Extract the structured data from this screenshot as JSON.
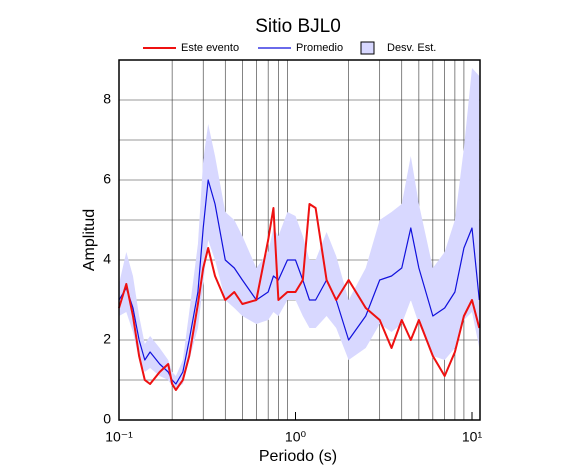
{
  "chart_data": {
    "type": "line",
    "title": "Sitio BJL0",
    "x_label": "Periodo (s)",
    "y_label": "Amplitud",
    "log_x": true,
    "xlim": [
      0.1,
      11.1
    ],
    "ylim": [
      0,
      9
    ],
    "xticks": [
      {
        "value": 0.1,
        "label": "10⁻¹"
      },
      {
        "value": 1,
        "label": "10⁰"
      },
      {
        "value": 10,
        "label": "10¹"
      }
    ],
    "x_minor_ticks": [
      0.2,
      0.3,
      0.4,
      0.5,
      0.6,
      0.7,
      0.8,
      0.9,
      2,
      3,
      4,
      5,
      6,
      7,
      8,
      9
    ],
    "yticks": [
      0,
      2,
      4,
      6,
      8
    ],
    "y_minor_ticks": [
      1,
      3,
      5,
      7
    ],
    "grid": true,
    "x": [
      0.1,
      0.11,
      0.12,
      0.13,
      0.14,
      0.15,
      0.17,
      0.19,
      0.2,
      0.21,
      0.23,
      0.25,
      0.28,
      0.3,
      0.32,
      0.35,
      0.4,
      0.45,
      0.5,
      0.6,
      0.7,
      0.75,
      0.8,
      0.9,
      1.0,
      1.1,
      1.2,
      1.3,
      1.5,
      1.7,
      2,
      2.5,
      3,
      3.5,
      4,
      4.5,
      5,
      6,
      7,
      8,
      9,
      10,
      11
    ],
    "series": [
      {
        "name": "Este evento",
        "color": "#ee1111",
        "width": 2,
        "values": [
          2.8,
          3.4,
          2.6,
          1.6,
          1.0,
          0.9,
          1.2,
          1.4,
          0.9,
          0.75,
          1.0,
          1.6,
          2.9,
          3.8,
          4.3,
          3.6,
          3.0,
          3.2,
          2.9,
          3.0,
          4.5,
          5.3,
          3.0,
          3.2,
          3.2,
          3.5,
          5.4,
          5.3,
          3.5,
          3.0,
          3.5,
          2.8,
          2.5,
          1.8,
          2.5,
          2.0,
          2.5,
          1.6,
          1.1,
          1.7,
          2.6,
          3.0,
          2.3
        ]
      },
      {
        "name": "Promedio",
        "color": "#1111dd",
        "width": 1.2,
        "values": [
          3.0,
          3.3,
          2.8,
          2.0,
          1.5,
          1.7,
          1.4,
          1.2,
          1.0,
          0.9,
          1.2,
          2.0,
          3.2,
          4.8,
          6.0,
          5.4,
          4.0,
          3.8,
          3.5,
          3.0,
          3.2,
          3.6,
          3.5,
          4.0,
          4.0,
          3.5,
          3.0,
          3.0,
          3.5,
          3.0,
          2.0,
          2.6,
          3.5,
          3.6,
          3.8,
          4.8,
          3.8,
          2.6,
          2.8,
          3.2,
          4.3,
          4.8,
          3.0
        ]
      }
    ],
    "band": {
      "name": "Desv. Est.",
      "color": "#d8d8ff",
      "lower": [
        2.6,
        2.7,
        2.2,
        1.5,
        1.2,
        1.3,
        1.1,
        1.0,
        0.85,
        0.8,
        0.9,
        1.5,
        2.3,
        3.4,
        4.5,
        4.0,
        3.0,
        2.8,
        2.6,
        2.4,
        2.5,
        2.7,
        2.6,
        3.0,
        3.0,
        2.6,
        2.3,
        2.3,
        2.6,
        2.3,
        1.5,
        1.8,
        2.4,
        2.2,
        2.4,
        3.0,
        2.4,
        1.6,
        1.5,
        1.8,
        2.5,
        2.7,
        1.8
      ],
      "upper": [
        3.4,
        4.2,
        3.6,
        2.6,
        1.9,
        2.1,
        1.8,
        1.5,
        1.2,
        1.1,
        1.5,
        2.7,
        4.4,
        6.5,
        7.4,
        6.6,
        5.2,
        5.0,
        4.6,
        3.8,
        4.2,
        4.8,
        4.6,
        5.2,
        5.1,
        4.6,
        4.0,
        4.0,
        4.7,
        4.1,
        3.0,
        3.8,
        5.0,
        5.2,
        5.4,
        6.6,
        5.4,
        3.8,
        4.2,
        5.0,
        6.8,
        8.8,
        8.6
      ]
    }
  }
}
